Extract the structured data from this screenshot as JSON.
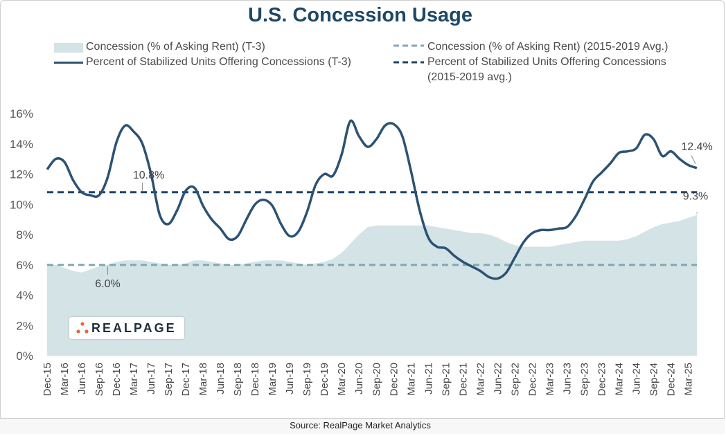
{
  "title": "U.S. Concession Usage",
  "legend": {
    "area": "Concession (% of Asking Rent) (T-3)",
    "area_avg": "Concession (% of Asking Rent) (2015-2019 Avg.)",
    "line": "Percent of Stabilized Units Offering Concessions (T-3)",
    "line_avg_1": "Percent of Stabilized Units Offering Concessions",
    "line_avg_2": "(2015-2019 avg.)"
  },
  "source": "Source: RealPage Market Analytics",
  "logo": {
    "text": "REALPAGE",
    "icon": "realpage-dots-icon"
  },
  "colors": {
    "title": "#1f4766",
    "line": "#2c5273",
    "line_avg": "#1e4468",
    "area": "#d3e3e6",
    "area_avg": "#7fa9b5",
    "logo_dots": "#e06a3a"
  },
  "chart_data": {
    "type": "line",
    "title": "U.S. Concession Usage",
    "x_start": "Dec-15",
    "x_end": "Jun-25",
    "x_tick_labels": [
      "Dec-15",
      "Mar-16",
      "Jun-16",
      "Sep-16",
      "Dec-16",
      "Mar-17",
      "Jun-17",
      "Sep-17",
      "Dec-17",
      "Mar-18",
      "Jun-18",
      "Sep-18",
      "Dec-18",
      "Mar-19",
      "Jun-19",
      "Sep-19",
      "Dec-19",
      "Mar-20",
      "Jun-20",
      "Sep-20",
      "Dec-20",
      "Mar-21",
      "Jun-21",
      "Sep-21",
      "Dec-21",
      "Mar-22",
      "Jun-22",
      "Sep-22",
      "Dec-22",
      "Mar-23",
      "Jun-23",
      "Sep-23",
      "Dec-23",
      "Mar-24",
      "Jun-24",
      "Sep-24",
      "Dec-24",
      "Mar-25"
    ],
    "y_ticks": [
      "0%",
      "2%",
      "4%",
      "6%",
      "8%",
      "10%",
      "12%",
      "14%",
      "16%"
    ],
    "ylim": [
      0,
      16
    ],
    "grid": false,
    "legend_position": "top",
    "series": [
      {
        "name": "Percent of Stabilized Units Offering Concessions (T-3)",
        "style": "line",
        "points": [
          [
            0,
            12.3
          ],
          [
            1,
            13
          ],
          [
            2,
            12.8
          ],
          [
            3,
            11.6
          ],
          [
            4,
            10.8
          ],
          [
            5,
            10.6
          ],
          [
            6,
            10.6
          ],
          [
            7,
            11.8
          ],
          [
            8,
            14.1
          ],
          [
            9,
            15.2
          ],
          [
            10,
            14.8
          ],
          [
            11,
            14.0
          ],
          [
            12,
            12.0
          ],
          [
            13,
            9.3
          ],
          [
            14,
            8.7
          ],
          [
            15,
            9.6
          ],
          [
            16,
            10.9
          ],
          [
            17,
            11.1
          ],
          [
            18,
            9.9
          ],
          [
            19,
            9.0
          ],
          [
            20,
            8.4
          ],
          [
            21,
            7.7
          ],
          [
            22,
            7.9
          ],
          [
            23,
            9.0
          ],
          [
            24,
            10.0
          ],
          [
            25,
            10.3
          ],
          [
            26,
            9.9
          ],
          [
            27,
            8.7
          ],
          [
            28,
            7.9
          ],
          [
            29,
            8.2
          ],
          [
            30,
            9.5
          ],
          [
            31,
            11.3
          ],
          [
            32,
            12.0
          ],
          [
            33,
            11.9
          ],
          [
            34,
            13.3
          ],
          [
            35,
            15.5
          ],
          [
            36,
            14.5
          ],
          [
            37,
            13.8
          ],
          [
            38,
            14.3
          ],
          [
            39,
            15.2
          ],
          [
            40,
            15.3
          ],
          [
            41,
            14.5
          ],
          [
            42,
            12.2
          ],
          [
            43,
            9.6
          ],
          [
            44,
            7.8
          ],
          [
            45,
            7.2
          ],
          [
            46,
            7.1
          ],
          [
            47,
            6.6
          ],
          [
            48,
            6.2
          ],
          [
            49,
            5.9
          ],
          [
            50,
            5.6
          ],
          [
            51,
            5.2
          ],
          [
            52,
            5.1
          ],
          [
            53,
            5.5
          ],
          [
            54,
            6.5
          ],
          [
            55,
            7.5
          ],
          [
            56,
            8.1
          ],
          [
            57,
            8.3
          ],
          [
            58,
            8.3
          ],
          [
            59,
            8.4
          ],
          [
            60,
            8.5
          ],
          [
            61,
            9.2
          ],
          [
            62,
            10.3
          ],
          [
            63,
            11.5
          ],
          [
            64,
            12.1
          ],
          [
            65,
            12.7
          ],
          [
            66,
            13.4
          ],
          [
            67,
            13.5
          ],
          [
            68,
            13.7
          ],
          [
            69,
            14.6
          ],
          [
            70,
            14.3
          ],
          [
            71,
            13.2
          ],
          [
            72,
            13.5
          ],
          [
            73,
            13.0
          ],
          [
            74,
            12.6
          ],
          [
            75,
            12.4
          ]
        ]
      },
      {
        "name": "Concession (% of Asking Rent) (T-3)",
        "style": "area",
        "points": [
          [
            0,
            5.9
          ],
          [
            1,
            6.0
          ],
          [
            2,
            5.8
          ],
          [
            3,
            5.6
          ],
          [
            4,
            5.5
          ],
          [
            5,
            5.7
          ],
          [
            6,
            5.9
          ],
          [
            7,
            6.0
          ],
          [
            8,
            6.2
          ],
          [
            9,
            6.3
          ],
          [
            10,
            6.3
          ],
          [
            11,
            6.3
          ],
          [
            12,
            6.2
          ],
          [
            13,
            6.1
          ],
          [
            14,
            6.0
          ],
          [
            15,
            6.0
          ],
          [
            16,
            6.1
          ],
          [
            17,
            6.3
          ],
          [
            18,
            6.3
          ],
          [
            19,
            6.2
          ],
          [
            20,
            6.1
          ],
          [
            21,
            6.0
          ],
          [
            22,
            6.0
          ],
          [
            23,
            6.1
          ],
          [
            24,
            6.2
          ],
          [
            25,
            6.3
          ],
          [
            26,
            6.3
          ],
          [
            27,
            6.3
          ],
          [
            28,
            6.2
          ],
          [
            29,
            6.1
          ],
          [
            30,
            6.0
          ],
          [
            31,
            6.1
          ],
          [
            32,
            6.2
          ],
          [
            33,
            6.4
          ],
          [
            34,
            6.8
          ],
          [
            35,
            7.4
          ],
          [
            36,
            8.0
          ],
          [
            37,
            8.5
          ],
          [
            38,
            8.6
          ],
          [
            39,
            8.6
          ],
          [
            40,
            8.6
          ],
          [
            41,
            8.6
          ],
          [
            42,
            8.6
          ],
          [
            43,
            8.6
          ],
          [
            44,
            8.6
          ],
          [
            45,
            8.5
          ],
          [
            46,
            8.4
          ],
          [
            47,
            8.3
          ],
          [
            48,
            8.2
          ],
          [
            49,
            8.1
          ],
          [
            50,
            8.1
          ],
          [
            51,
            8.0
          ],
          [
            52,
            7.8
          ],
          [
            53,
            7.5
          ],
          [
            54,
            7.3
          ],
          [
            55,
            7.2
          ],
          [
            56,
            7.2
          ],
          [
            57,
            7.2
          ],
          [
            58,
            7.2
          ],
          [
            59,
            7.3
          ],
          [
            60,
            7.4
          ],
          [
            61,
            7.5
          ],
          [
            62,
            7.6
          ],
          [
            63,
            7.6
          ],
          [
            64,
            7.6
          ],
          [
            65,
            7.6
          ],
          [
            66,
            7.6
          ],
          [
            67,
            7.7
          ],
          [
            68,
            7.9
          ],
          [
            69,
            8.2
          ],
          [
            70,
            8.5
          ],
          [
            71,
            8.7
          ],
          [
            72,
            8.8
          ],
          [
            73,
            8.9
          ],
          [
            74,
            9.1
          ],
          [
            75,
            9.3
          ]
        ]
      },
      {
        "name": "Percent of Stabilized Units Offering Concessions (2015-2019 avg.)",
        "style": "dashed",
        "value": 10.8
      },
      {
        "name": "Concession (% of Asking Rent) (2015-2019 Avg.)",
        "style": "dashed",
        "value": 6.0
      }
    ],
    "annotations": [
      {
        "text": "10.8%",
        "x": 11,
        "y": 10.8
      },
      {
        "text": "6.0%",
        "x": 7,
        "y": 6.0
      },
      {
        "text": "12.4%",
        "x": 75,
        "y": 12.4
      },
      {
        "text": "9.3%",
        "x": 75,
        "y": 9.3
      }
    ]
  }
}
